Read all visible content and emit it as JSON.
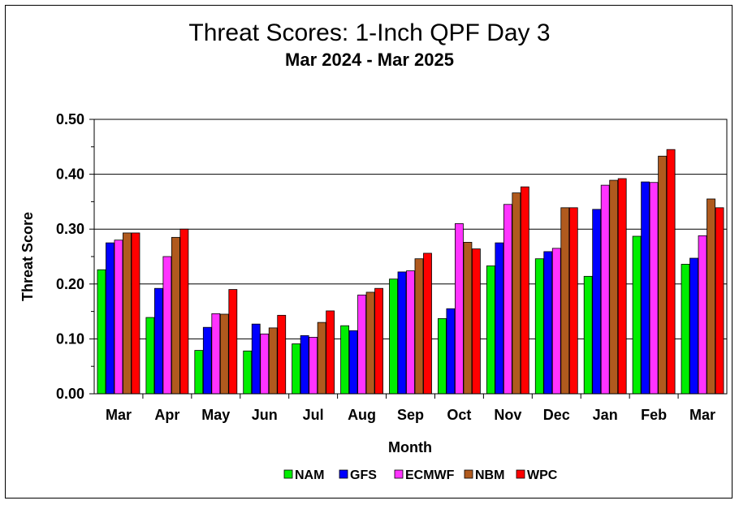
{
  "chart_data": {
    "type": "bar",
    "title": "Threat Scores:  1-Inch QPF Day 3",
    "subtitle": "Mar 2024 - Mar 2025",
    "xlabel": "Month",
    "ylabel": "Threat Score",
    "ylim": [
      0,
      0.5
    ],
    "yticks": [
      "0.00",
      "0.10",
      "0.20",
      "0.30",
      "0.40",
      "0.50"
    ],
    "grid": true,
    "legend_position": "bottom",
    "categories": [
      "Mar",
      "Apr",
      "May",
      "Jun",
      "Jul",
      "Aug",
      "Sep",
      "Oct",
      "Nov",
      "Dec",
      "Jan",
      "Feb",
      "Mar"
    ],
    "series": [
      {
        "name": "NAM",
        "color": "#00ee00",
        "values": [
          0.226,
          0.139,
          0.079,
          0.078,
          0.091,
          0.124,
          0.209,
          0.137,
          0.233,
          0.246,
          0.214,
          0.287,
          0.236
        ]
      },
      {
        "name": "GFS",
        "color": "#0000ff",
        "values": [
          0.275,
          0.192,
          0.121,
          0.127,
          0.106,
          0.115,
          0.222,
          0.155,
          0.275,
          0.259,
          0.336,
          0.386,
          0.247
        ]
      },
      {
        "name": "ECMWF",
        "color": "#ff33ff",
        "values": [
          0.28,
          0.25,
          0.146,
          0.109,
          0.103,
          0.18,
          0.224,
          0.31,
          0.345,
          0.265,
          0.38,
          0.385,
          0.288
        ]
      },
      {
        "name": "NBM",
        "color": "#b05a1e",
        "values": [
          0.293,
          0.285,
          0.145,
          0.12,
          0.13,
          0.185,
          0.246,
          0.276,
          0.366,
          0.339,
          0.389,
          0.433,
          0.355
        ]
      },
      {
        "name": "WPC",
        "color": "#ff0000",
        "values": [
          0.293,
          0.3,
          0.19,
          0.143,
          0.151,
          0.192,
          0.256,
          0.264,
          0.377,
          0.339,
          0.392,
          0.445,
          0.339
        ]
      }
    ]
  }
}
